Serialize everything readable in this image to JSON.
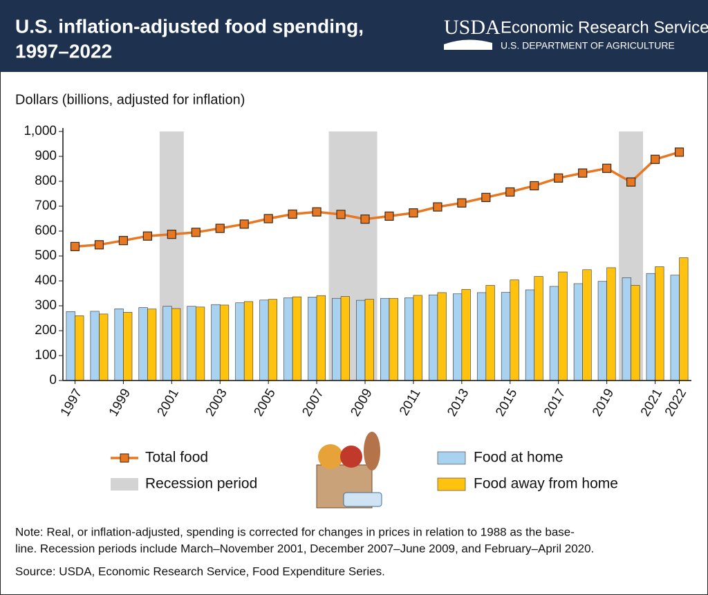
{
  "header": {
    "title_lines": [
      "U.S. inflation-adjusted food spending,",
      "1997–2022"
    ],
    "logo": "USDA",
    "agency": "Economic Research Service",
    "department": "U.S. DEPARTMENT OF AGRICULTURE"
  },
  "chart_data": {
    "type": "bar-line",
    "y_label": "Dollars (billions, adjusted for inflation)",
    "x": [
      1997,
      1998,
      1999,
      2000,
      2001,
      2002,
      2003,
      2004,
      2005,
      2006,
      2007,
      2008,
      2009,
      2010,
      2011,
      2012,
      2013,
      2014,
      2015,
      2016,
      2017,
      2018,
      2019,
      2020,
      2021,
      2022
    ],
    "xlim": [
      1996.5,
      2022.5
    ],
    "xticks": [
      1997,
      1999,
      2001,
      2003,
      2005,
      2007,
      2009,
      2011,
      2013,
      2015,
      2017,
      2019,
      2021,
      2022
    ],
    "ylim": [
      0,
      1000
    ],
    "yticks": [
      0,
      100,
      200,
      300,
      400,
      500,
      600,
      700,
      800,
      900,
      {
        "value": 1000,
        "label": "1,000"
      }
    ],
    "recession_label": "Recession period",
    "recession_color": "#d3d3d3",
    "recessions": [
      [
        2000.5,
        2001.5
      ],
      [
        2007.5,
        2009.5
      ],
      [
        2019.5,
        2020.5
      ]
    ],
    "series": [
      {
        "name": "Total food",
        "kind": "line",
        "color": "#e87722",
        "values": [
          538,
          545,
          562,
          580,
          587,
          595,
          611,
          628,
          650,
          668,
          677,
          667,
          648,
          660,
          673,
          697,
          713,
          735,
          757,
          782,
          813,
          833,
          852,
          797,
          888,
          917
        ]
      },
      {
        "name": "Food at home",
        "kind": "bar",
        "color": "#a9d1f0",
        "values": [
          277,
          278,
          288,
          293,
          298,
          298,
          305,
          312,
          323,
          332,
          335,
          330,
          322,
          330,
          332,
          344,
          348,
          353,
          354,
          364,
          378,
          389,
          398,
          413,
          430,
          423
        ]
      },
      {
        "name": "Food away from home",
        "kind": "bar",
        "color": "#ffc20e",
        "values": [
          260,
          267,
          274,
          287,
          289,
          295,
          303,
          317,
          326,
          336,
          341,
          337,
          326,
          330,
          342,
          353,
          366,
          382,
          404,
          418,
          436,
          445,
          453,
          382,
          457,
          493
        ]
      }
    ]
  },
  "notes": [
    "Note: Real, or inflation-adjusted, spending is corrected for changes in prices in relation to 1988 as the base-",
    "line. Recession periods include March–November 2001, December 2007–June 2009, and February–April 2020."
  ],
  "source": "Source: USDA, Economic Research Service, Food Expenditure Series."
}
